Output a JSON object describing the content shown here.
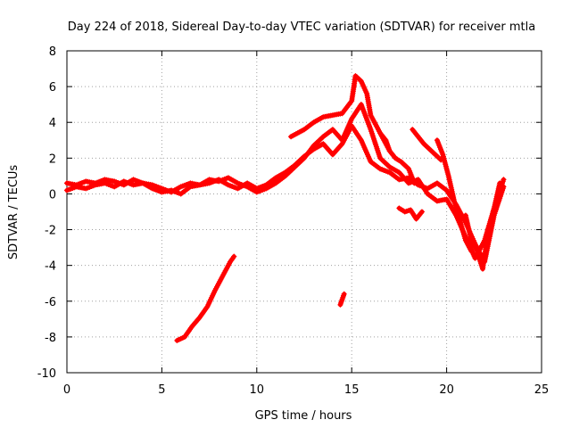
{
  "chart_data": {
    "type": "scatter",
    "title": "Day 224 of 2018, Sidereal Day-to-day VTEC variation (SDTVAR) for receiver mtla",
    "xlabel": "GPS time / hours",
    "ylabel": "SDTVAR / TECUs",
    "xlim": [
      0,
      25
    ],
    "ylim": [
      -10,
      8
    ],
    "xticks": [
      0,
      5,
      10,
      15,
      20,
      25
    ],
    "yticks": [
      -10,
      -8,
      -6,
      -4,
      -2,
      0,
      2,
      4,
      6,
      8
    ],
    "grid": true,
    "legend": "none",
    "series_color": "#ff0000",
    "series": [
      {
        "name": "main-band-a",
        "x": [
          0,
          0.5,
          1,
          1.5,
          2,
          2.5,
          3,
          3.5,
          4,
          4.5,
          5,
          5.5,
          6,
          6.5,
          7,
          7.5,
          8,
          8.5,
          9,
          9.5,
          10,
          10.5,
          11,
          11.5,
          12,
          12.5,
          13,
          13.5,
          14,
          14.5,
          15,
          15.5,
          16,
          16.5,
          17,
          17.5,
          18,
          18.5,
          19,
          19.5,
          20,
          20.5,
          21,
          21.5,
          22,
          22.5,
          23
        ],
        "y": [
          0.2,
          0.4,
          0.3,
          0.5,
          0.6,
          0.4,
          0.7,
          0.5,
          0.6,
          0.3,
          0.1,
          0.2,
          0.0,
          0.4,
          0.5,
          0.6,
          0.8,
          0.5,
          0.3,
          0.6,
          0.3,
          0.5,
          0.9,
          1.2,
          1.6,
          2.1,
          2.5,
          2.8,
          2.2,
          2.8,
          3.8,
          3.0,
          1.8,
          1.4,
          1.2,
          0.8,
          0.9,
          0.5,
          0.3,
          0.6,
          0.2,
          -0.6,
          -1.6,
          -2.8,
          -3.8,
          -1.2,
          0.4
        ]
      },
      {
        "name": "main-band-b",
        "x": [
          0,
          0.5,
          1,
          1.5,
          2,
          2.5,
          3,
          3.5,
          4,
          4.5,
          5,
          5.5,
          6,
          6.5,
          7,
          7.5,
          8,
          8.5,
          9,
          9.5,
          10,
          10.5,
          11,
          11.5,
          12,
          12.5,
          13,
          13.5,
          14,
          14.5,
          15,
          15.5,
          16,
          16.5,
          17,
          17.5,
          18,
          18.5,
          19,
          19.5,
          20,
          20.5,
          21,
          21.5,
          22,
          22.5,
          23
        ],
        "y": [
          0.6,
          0.5,
          0.7,
          0.6,
          0.8,
          0.7,
          0.5,
          0.8,
          0.6,
          0.5,
          0.3,
          0.1,
          0.4,
          0.6,
          0.5,
          0.8,
          0.7,
          0.9,
          0.6,
          0.4,
          0.1,
          0.3,
          0.6,
          1.0,
          1.5,
          2.0,
          2.7,
          3.2,
          3.6,
          3.0,
          4.2,
          5.0,
          3.6,
          2.0,
          1.5,
          1.2,
          0.6,
          0.8,
          0.0,
          -0.4,
          -0.3,
          -1.2,
          -2.4,
          -3.6,
          -2.6,
          -0.8,
          0.8
        ]
      },
      {
        "name": "upper-arc",
        "x": [
          11.8,
          12.5,
          13,
          13.5,
          14,
          14.5,
          15,
          15.2,
          15.5,
          15.8,
          16,
          16.3,
          16.6,
          17
        ],
        "y": [
          3.2,
          3.6,
          4.0,
          4.3,
          4.4,
          4.5,
          5.2,
          6.6,
          6.3,
          5.6,
          4.4,
          3.8,
          3.2,
          2.4
        ]
      },
      {
        "name": "branch-16-18",
        "x": [
          16.5,
          16.8,
          17,
          17.3,
          17.6,
          18,
          18.3
        ],
        "y": [
          3.4,
          3.0,
          2.4,
          2.0,
          1.8,
          1.4,
          0.6
        ]
      },
      {
        "name": "branch-18-19",
        "x": [
          18.2,
          18.5,
          18.8,
          19.1,
          19.4,
          19.7
        ],
        "y": [
          3.6,
          3.2,
          2.8,
          2.5,
          2.2,
          1.9
        ]
      },
      {
        "name": "branch-19-21",
        "x": [
          19.5,
          19.8,
          20.1,
          20.4,
          20.7,
          21,
          21.3
        ],
        "y": [
          3.0,
          2.2,
          1.0,
          -0.4,
          -1.5,
          -2.6,
          -3.2
        ]
      },
      {
        "name": "dip-17-19",
        "x": [
          17.5,
          17.8,
          18.1,
          18.4,
          18.7
        ],
        "y": [
          -0.8,
          -1.0,
          -0.9,
          -1.4,
          -1.0
        ]
      },
      {
        "name": "low-right",
        "x": [
          21,
          21.3,
          21.6,
          21.9,
          22.2,
          22.5,
          22.8
        ],
        "y": [
          -1.2,
          -2.6,
          -3.2,
          -4.2,
          -2.0,
          -0.8,
          0.6
        ]
      },
      {
        "name": "lower-line",
        "x": [
          5.8,
          6.2,
          6.6,
          7,
          7.4,
          7.8,
          8.2,
          8.6,
          8.8
        ],
        "y": [
          -8.2,
          -8.0,
          -7.4,
          -6.9,
          -6.3,
          -5.4,
          -4.6,
          -3.8,
          -3.5
        ]
      },
      {
        "name": "isolated-14-5",
        "x": [
          14.4,
          14.5,
          14.6
        ],
        "y": [
          -6.2,
          -5.9,
          -5.6
        ]
      }
    ]
  }
}
